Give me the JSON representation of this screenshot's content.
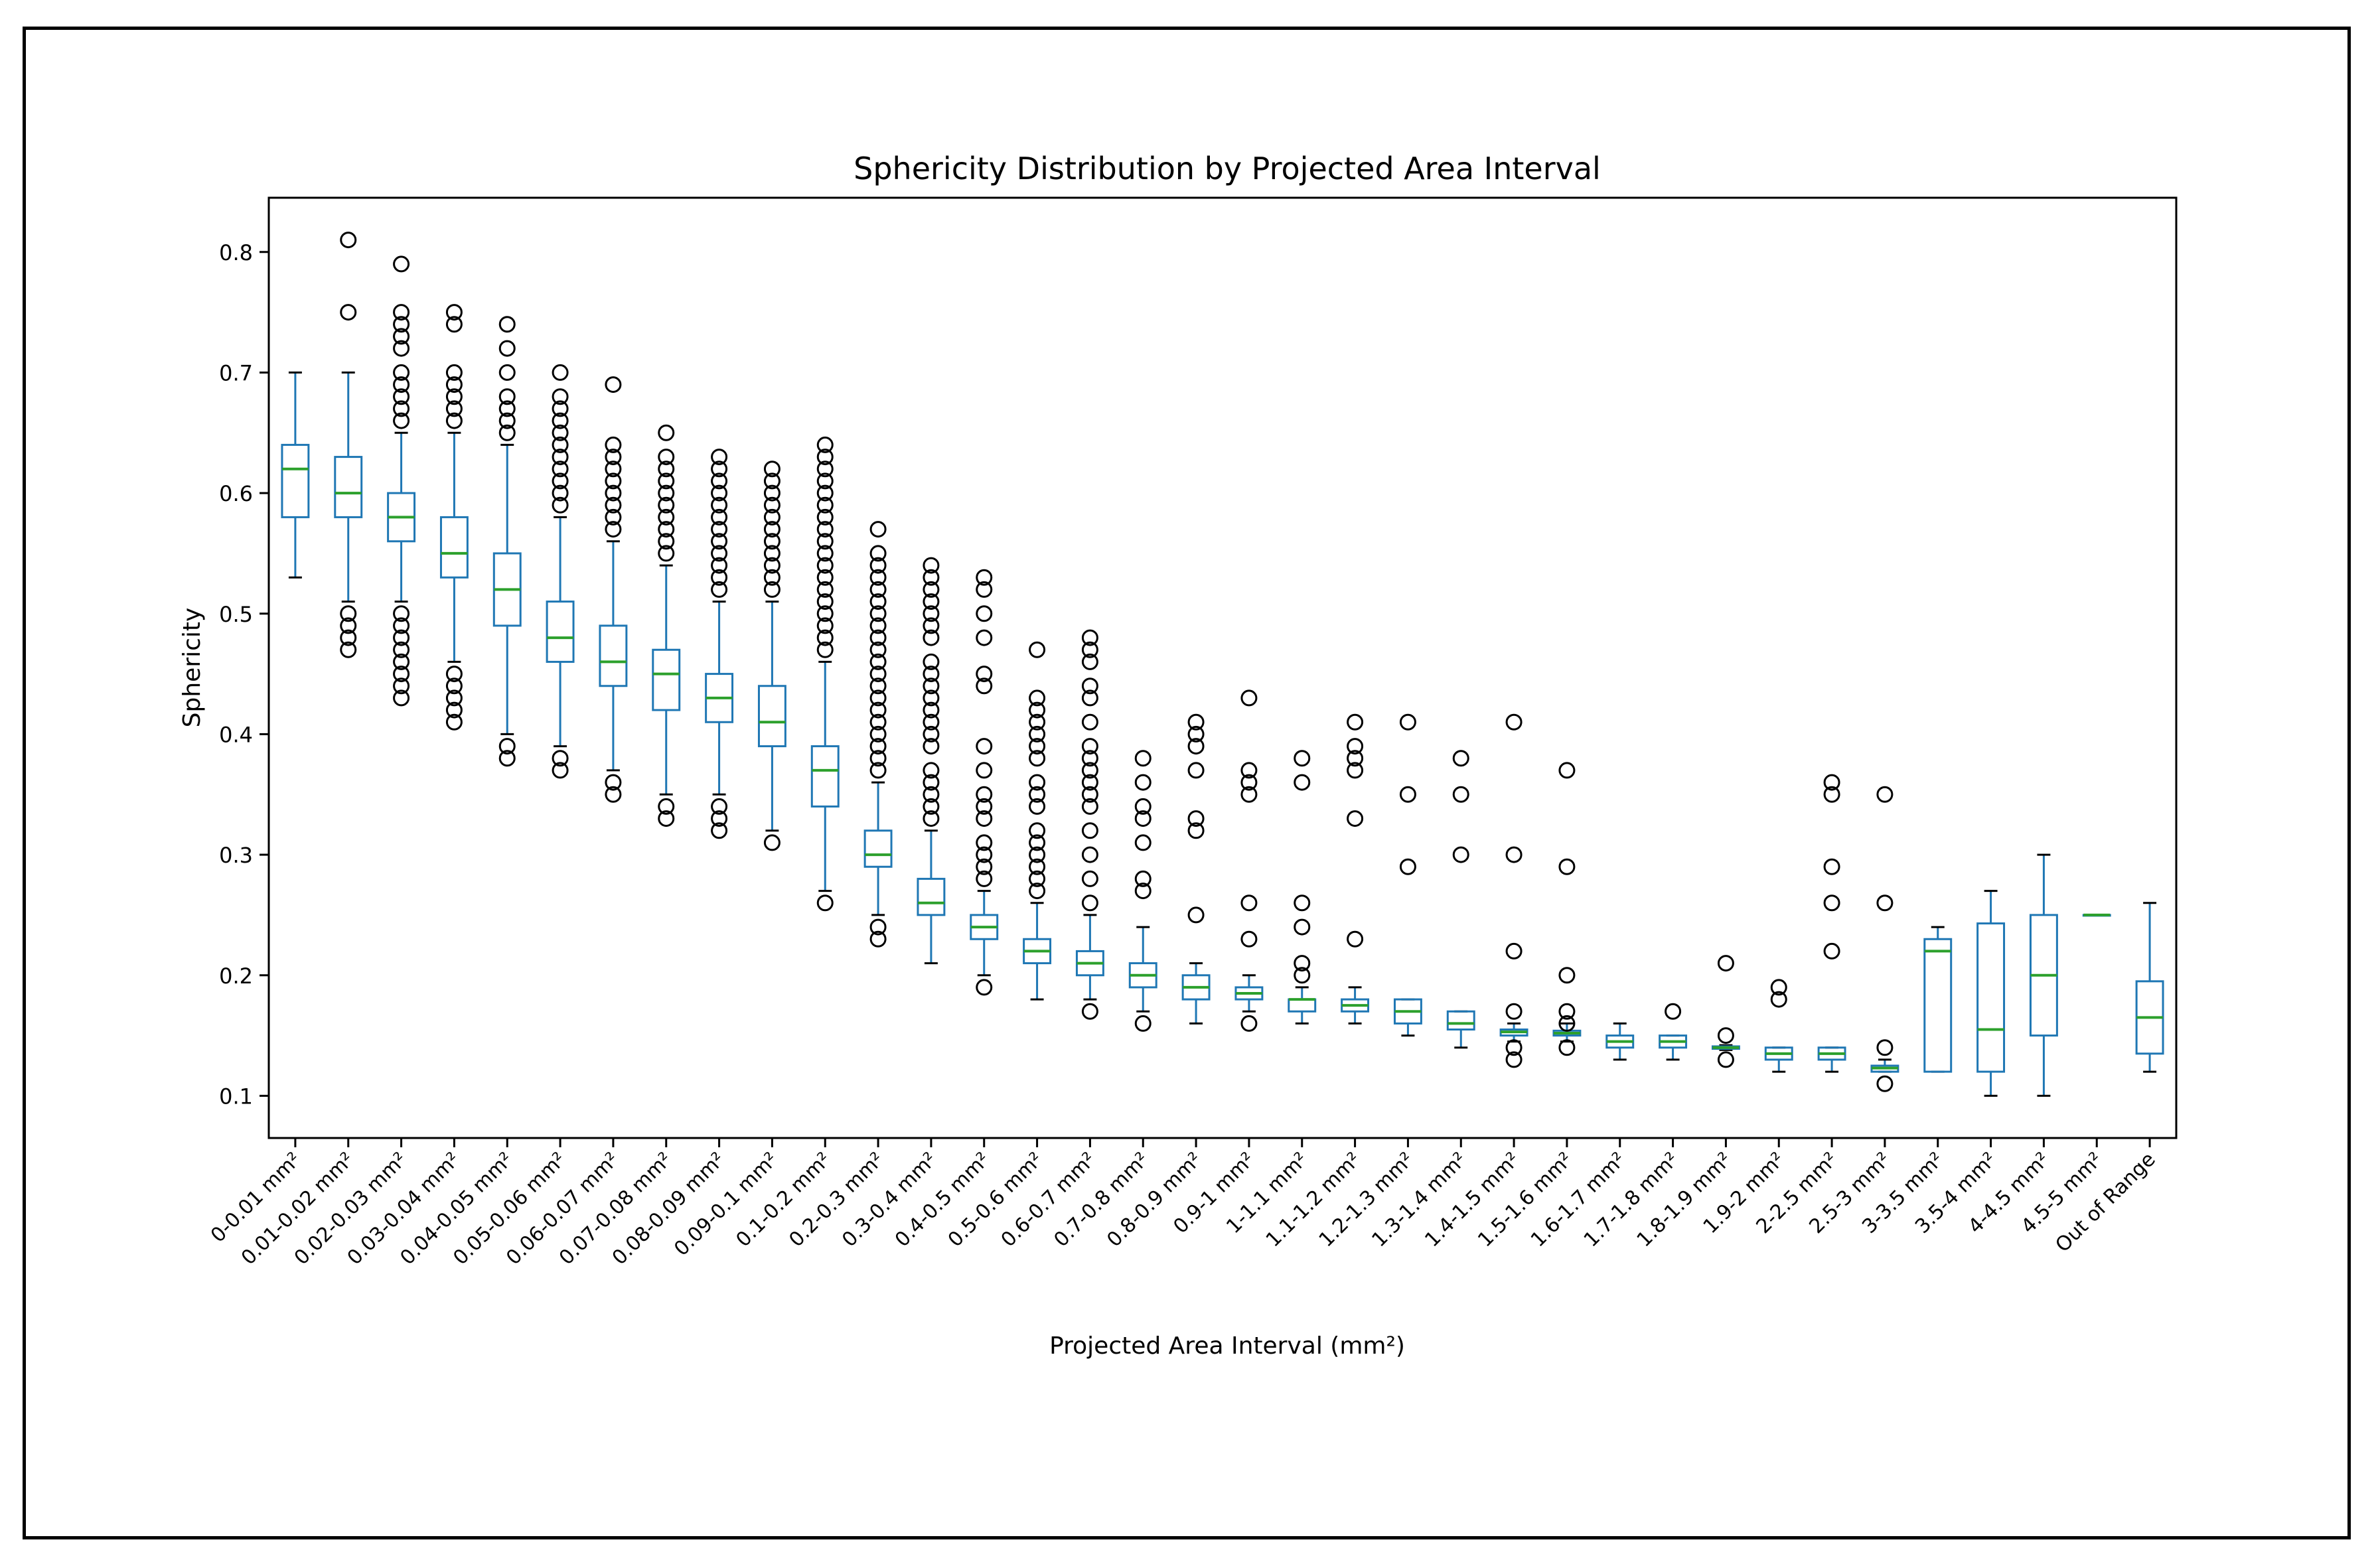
{
  "chart_data": {
    "type": "box",
    "title": "Sphericity Distribution by Projected Area Interval",
    "xlabel": "Projected Area Interval (mm²)",
    "ylabel": "Sphericity",
    "ylim": [
      0.065,
      0.845
    ],
    "yticks": [
      "0.1",
      "0.2",
      "0.3",
      "0.4",
      "0.5",
      "0.6",
      "0.7",
      "0.8"
    ],
    "grid": false,
    "colors": {
      "box": "#1f77b4",
      "median": "#2ca02c",
      "flier": "#000000"
    },
    "categories": [
      "0-0.01 mm²",
      "0.01-0.02 mm²",
      "0.02-0.03 mm²",
      "0.03-0.04 mm²",
      "0.04-0.05 mm²",
      "0.05-0.06 mm²",
      "0.06-0.07 mm²",
      "0.07-0.08 mm²",
      "0.08-0.09 mm²",
      "0.09-0.1 mm²",
      "0.1-0.2 mm²",
      "0.2-0.3 mm²",
      "0.3-0.4 mm²",
      "0.4-0.5 mm²",
      "0.5-0.6 mm²",
      "0.6-0.7 mm²",
      "0.7-0.8 mm²",
      "0.8-0.9 mm²",
      "0.9-1 mm²",
      "1-1.1 mm²",
      "1.1-1.2 mm²",
      "1.2-1.3 mm²",
      "1.3-1.4 mm²",
      "1.4-1.5 mm²",
      "1.5-1.6 mm²",
      "1.6-1.7 mm²",
      "1.7-1.8 mm²",
      "1.8-1.9 mm²",
      "1.9-2 mm²",
      "2-2.5 mm²",
      "2.5-3 mm²",
      "3-3.5 mm²",
      "3.5-4 mm²",
      "4-4.5 mm²",
      "4.5-5 mm²",
      "Out of Range"
    ],
    "boxes": [
      {
        "wl": 0.53,
        "q1": 0.58,
        "med": 0.62,
        "q3": 0.64,
        "wh": 0.7,
        "fliers": []
      },
      {
        "wl": 0.51,
        "q1": 0.58,
        "med": 0.6,
        "q3": 0.63,
        "wh": 0.7,
        "fliers": [
          0.47,
          0.48,
          0.49,
          0.5,
          0.75,
          0.81
        ]
      },
      {
        "wl": 0.51,
        "q1": 0.56,
        "med": 0.58,
        "q3": 0.6,
        "wh": 0.65,
        "fliers": [
          0.43,
          0.44,
          0.45,
          0.46,
          0.47,
          0.48,
          0.49,
          0.5,
          0.66,
          0.67,
          0.68,
          0.69,
          0.7,
          0.72,
          0.73,
          0.74,
          0.75,
          0.79
        ]
      },
      {
        "wl": 0.46,
        "q1": 0.53,
        "med": 0.55,
        "q3": 0.58,
        "wh": 0.65,
        "fliers": [
          0.41,
          0.42,
          0.43,
          0.44,
          0.45,
          0.66,
          0.67,
          0.68,
          0.69,
          0.7,
          0.74,
          0.75
        ]
      },
      {
        "wl": 0.4,
        "q1": 0.49,
        "med": 0.52,
        "q3": 0.55,
        "wh": 0.64,
        "fliers": [
          0.38,
          0.39,
          0.65,
          0.66,
          0.67,
          0.68,
          0.7,
          0.72,
          0.74
        ]
      },
      {
        "wl": 0.39,
        "q1": 0.46,
        "med": 0.48,
        "q3": 0.51,
        "wh": 0.58,
        "fliers": [
          0.37,
          0.38,
          0.59,
          0.6,
          0.61,
          0.62,
          0.63,
          0.64,
          0.65,
          0.66,
          0.67,
          0.68,
          0.7
        ]
      },
      {
        "wl": 0.37,
        "q1": 0.44,
        "med": 0.46,
        "q3": 0.49,
        "wh": 0.56,
        "fliers": [
          0.35,
          0.36,
          0.57,
          0.58,
          0.59,
          0.6,
          0.61,
          0.62,
          0.63,
          0.64,
          0.69
        ]
      },
      {
        "wl": 0.35,
        "q1": 0.42,
        "med": 0.45,
        "q3": 0.47,
        "wh": 0.54,
        "fliers": [
          0.33,
          0.34,
          0.55,
          0.56,
          0.57,
          0.58,
          0.59,
          0.6,
          0.61,
          0.62,
          0.63,
          0.65
        ]
      },
      {
        "wl": 0.35,
        "q1": 0.41,
        "med": 0.43,
        "q3": 0.45,
        "wh": 0.51,
        "fliers": [
          0.32,
          0.33,
          0.34,
          0.52,
          0.53,
          0.54,
          0.55,
          0.56,
          0.57,
          0.58,
          0.59,
          0.6,
          0.61,
          0.62,
          0.63
        ]
      },
      {
        "wl": 0.32,
        "q1": 0.39,
        "med": 0.41,
        "q3": 0.44,
        "wh": 0.51,
        "fliers": [
          0.31,
          0.52,
          0.53,
          0.54,
          0.55,
          0.56,
          0.57,
          0.58,
          0.59,
          0.6,
          0.61,
          0.62
        ]
      },
      {
        "wl": 0.27,
        "q1": 0.34,
        "med": 0.37,
        "q3": 0.39,
        "wh": 0.46,
        "fliers": [
          0.26,
          0.47,
          0.48,
          0.49,
          0.5,
          0.51,
          0.52,
          0.53,
          0.54,
          0.55,
          0.56,
          0.57,
          0.58,
          0.59,
          0.6,
          0.61,
          0.62,
          0.63,
          0.64
        ]
      },
      {
        "wl": 0.25,
        "q1": 0.29,
        "med": 0.3,
        "q3": 0.32,
        "wh": 0.36,
        "fliers": [
          0.23,
          0.24,
          0.37,
          0.38,
          0.39,
          0.4,
          0.41,
          0.42,
          0.43,
          0.44,
          0.45,
          0.46,
          0.47,
          0.48,
          0.49,
          0.5,
          0.51,
          0.52,
          0.53,
          0.54,
          0.55,
          0.57
        ]
      },
      {
        "wl": 0.21,
        "q1": 0.25,
        "med": 0.26,
        "q3": 0.28,
        "wh": 0.32,
        "fliers": [
          0.33,
          0.34,
          0.35,
          0.36,
          0.37,
          0.39,
          0.4,
          0.41,
          0.42,
          0.43,
          0.44,
          0.45,
          0.46,
          0.48,
          0.49,
          0.5,
          0.51,
          0.52,
          0.53,
          0.54
        ]
      },
      {
        "wl": 0.2,
        "q1": 0.23,
        "med": 0.24,
        "q3": 0.25,
        "wh": 0.27,
        "fliers": [
          0.19,
          0.28,
          0.29,
          0.3,
          0.31,
          0.33,
          0.34,
          0.35,
          0.37,
          0.39,
          0.44,
          0.45,
          0.48,
          0.5,
          0.52,
          0.53
        ]
      },
      {
        "wl": 0.18,
        "q1": 0.21,
        "med": 0.22,
        "q3": 0.23,
        "wh": 0.26,
        "fliers": [
          0.27,
          0.28,
          0.29,
          0.3,
          0.31,
          0.32,
          0.34,
          0.35,
          0.36,
          0.38,
          0.39,
          0.4,
          0.41,
          0.42,
          0.43,
          0.47
        ]
      },
      {
        "wl": 0.18,
        "q1": 0.2,
        "med": 0.21,
        "q3": 0.22,
        "wh": 0.25,
        "fliers": [
          0.17,
          0.26,
          0.28,
          0.3,
          0.32,
          0.34,
          0.35,
          0.36,
          0.37,
          0.38,
          0.39,
          0.41,
          0.43,
          0.44,
          0.46,
          0.47,
          0.48
        ]
      },
      {
        "wl": 0.17,
        "q1": 0.19,
        "med": 0.2,
        "q3": 0.21,
        "wh": 0.24,
        "fliers": [
          0.16,
          0.27,
          0.28,
          0.31,
          0.33,
          0.34,
          0.36,
          0.38
        ]
      },
      {
        "wl": 0.16,
        "q1": 0.18,
        "med": 0.19,
        "q3": 0.2,
        "wh": 0.21,
        "fliers": [
          0.25,
          0.32,
          0.33,
          0.37,
          0.39,
          0.4,
          0.41
        ]
      },
      {
        "wl": 0.17,
        "q1": 0.18,
        "med": 0.185,
        "q3": 0.19,
        "wh": 0.2,
        "fliers": [
          0.16,
          0.23,
          0.26,
          0.35,
          0.36,
          0.37,
          0.43
        ]
      },
      {
        "wl": 0.16,
        "q1": 0.17,
        "med": 0.18,
        "q3": 0.18,
        "wh": 0.19,
        "fliers": [
          0.2,
          0.21,
          0.24,
          0.26,
          0.36,
          0.38
        ]
      },
      {
        "wl": 0.16,
        "q1": 0.17,
        "med": 0.175,
        "q3": 0.18,
        "wh": 0.19,
        "fliers": [
          0.23,
          0.33,
          0.37,
          0.38,
          0.39,
          0.41
        ]
      },
      {
        "wl": 0.15,
        "q1": 0.16,
        "med": 0.17,
        "q3": 0.18,
        "wh": 0.18,
        "fliers": [
          0.29,
          0.35,
          0.41
        ]
      },
      {
        "wl": 0.14,
        "q1": 0.155,
        "med": 0.16,
        "q3": 0.17,
        "wh": 0.17,
        "fliers": [
          0.3,
          0.35,
          0.38
        ]
      },
      {
        "wl": 0.145,
        "q1": 0.15,
        "med": 0.153,
        "q3": 0.155,
        "wh": 0.16,
        "fliers": [
          0.13,
          0.14,
          0.17,
          0.22,
          0.3,
          0.41
        ]
      },
      {
        "wl": 0.145,
        "q1": 0.15,
        "med": 0.152,
        "q3": 0.154,
        "wh": 0.16,
        "fliers": [
          0.14,
          0.16,
          0.17,
          0.2,
          0.29,
          0.37
        ]
      },
      {
        "wl": 0.13,
        "q1": 0.14,
        "med": 0.145,
        "q3": 0.15,
        "wh": 0.16,
        "fliers": []
      },
      {
        "wl": 0.13,
        "q1": 0.14,
        "med": 0.145,
        "q3": 0.15,
        "wh": 0.15,
        "fliers": [
          0.17
        ]
      },
      {
        "wl": 0.138,
        "q1": 0.139,
        "med": 0.14,
        "q3": 0.141,
        "wh": 0.142,
        "fliers": [
          0.13,
          0.15,
          0.21
        ]
      },
      {
        "wl": 0.12,
        "q1": 0.13,
        "med": 0.135,
        "q3": 0.14,
        "wh": 0.14,
        "fliers": [
          0.18,
          0.19
        ]
      },
      {
        "wl": 0.12,
        "q1": 0.13,
        "med": 0.135,
        "q3": 0.14,
        "wh": 0.14,
        "fliers": [
          0.22,
          0.26,
          0.29,
          0.35,
          0.36
        ]
      },
      {
        "wl": 0.12,
        "q1": 0.12,
        "med": 0.123,
        "q3": 0.125,
        "wh": 0.13,
        "fliers": [
          0.11,
          0.14,
          0.26,
          0.35
        ]
      },
      {
        "wl": 0.12,
        "q1": 0.12,
        "med": 0.22,
        "q3": 0.23,
        "wh": 0.24,
        "fliers": []
      },
      {
        "wl": 0.1,
        "q1": 0.12,
        "med": 0.155,
        "q3": 0.243,
        "wh": 0.27,
        "fliers": []
      },
      {
        "wl": 0.1,
        "q1": 0.15,
        "med": 0.2,
        "q3": 0.25,
        "wh": 0.3,
        "fliers": []
      },
      {
        "wl": 0.25,
        "q1": 0.25,
        "med": 0.25,
        "q3": 0.25,
        "wh": 0.25,
        "fliers": []
      },
      {
        "wl": 0.12,
        "q1": 0.135,
        "med": 0.165,
        "q3": 0.195,
        "wh": 0.26,
        "fliers": []
      }
    ]
  }
}
